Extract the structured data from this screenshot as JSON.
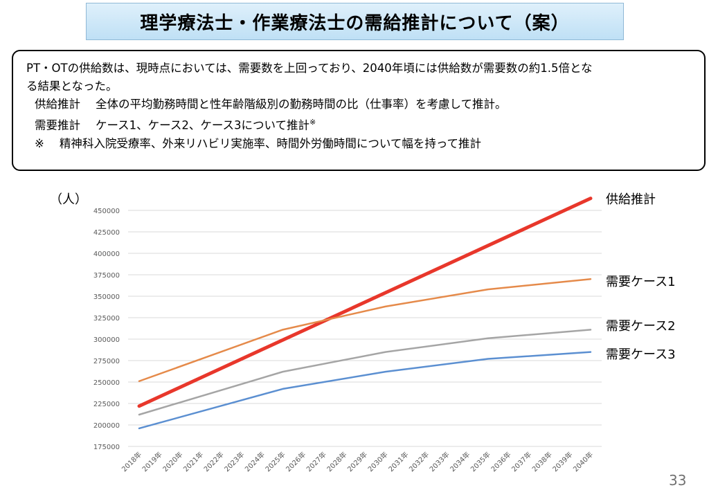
{
  "title": "理学療法士・作業療法士の需給推計について（案）",
  "summary": {
    "line1": "PT・OTの供給数は、現時点においては、需要数を上回っており、2040年頃には供給数が需要数の約1.5倍とな",
    "line2": "る結果となった。",
    "supply_label": "供給推計",
    "supply_text": "全体の平均勤務時間と性年齢階級別の勤務時間の比（仕事率）を考慮して推計。",
    "demand_label": "需要推計",
    "demand_text": "ケース1、ケース2、ケース3について推計",
    "demand_note_mark": "※",
    "note_mark": "※",
    "note_text": "精神科入院受療率、外来リハビリ実施率、時間外労働時間について幅を持って推計"
  },
  "page_number": "33",
  "chart_data": {
    "type": "line",
    "y_unit_label": "（人）",
    "ylim": [
      175000,
      450000
    ],
    "yticks": [
      175000,
      200000,
      225000,
      250000,
      275000,
      300000,
      325000,
      350000,
      375000,
      400000,
      425000,
      450000
    ],
    "categories": [
      "2018年",
      "2019年",
      "2020年",
      "2021年",
      "2022年",
      "2023年",
      "2024年",
      "2025年",
      "2026年",
      "2027年",
      "2028年",
      "2029年",
      "2030年",
      "2031年",
      "2032年",
      "2033年",
      "2034年",
      "2035年",
      "2036年",
      "2037年",
      "2038年",
      "2039年",
      "2040年"
    ],
    "grid": true,
    "series": [
      {
        "name": "供給推計",
        "color": "#e8372b",
        "width": 5,
        "x": [
          "2018年",
          "2040年"
        ],
        "values": [
          222000,
          464000
        ]
      },
      {
        "name": "需要ケース1",
        "color": "#e58a4a",
        "width": 2.5,
        "x": [
          "2018年",
          "2025年",
          "2030年",
          "2035年",
          "2040年"
        ],
        "values": [
          251000,
          311000,
          338000,
          358000,
          370000
        ]
      },
      {
        "name": "需要ケース2",
        "color": "#a5a5a5",
        "width": 2.5,
        "x": [
          "2018年",
          "2025年",
          "2030年",
          "2035年",
          "2040年"
        ],
        "values": [
          212000,
          262000,
          285000,
          301000,
          311000
        ]
      },
      {
        "name": "需要ケース3",
        "color": "#5b8fd1",
        "width": 2.5,
        "x": [
          "2018年",
          "2025年",
          "2030年",
          "2035年",
          "2040年"
        ],
        "values": [
          196000,
          242000,
          262000,
          277000,
          285000
        ]
      }
    ]
  }
}
